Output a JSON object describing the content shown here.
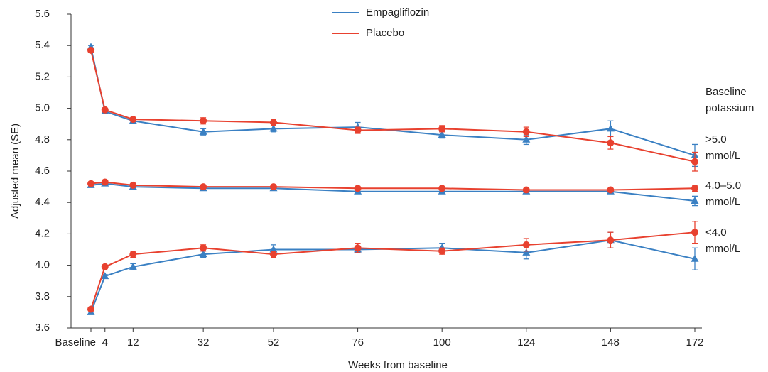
{
  "chart_data": {
    "type": "line",
    "x_label": "Weeks from baseline",
    "y_label": "Adjusted mean (SE)",
    "x": [
      0,
      4,
      12,
      32,
      52,
      76,
      100,
      124,
      148,
      172
    ],
    "xlim": [
      0,
      172
    ],
    "xticks": [
      {
        "value": 0,
        "label": "Baseline"
      },
      4,
      12,
      32,
      52,
      76,
      100,
      124,
      148,
      172
    ],
    "ylim": [
      3.6,
      5.6
    ],
    "yticks": [
      3.6,
      3.8,
      {
        "value": 4,
        "label": "4.0"
      },
      4.2,
      4.4,
      4.6,
      4.8,
      {
        "value": 5,
        "label": "5.0"
      },
      5.2,
      5.4,
      5.6
    ],
    "legend": "top",
    "group_title": [
      "Baseline",
      "potassium"
    ],
    "group_labels": [
      [
        ">5.0",
        "mmol/L"
      ],
      [
        "4.0–5.0",
        "mmol/L"
      ],
      [
        "<4.0",
        "mmol/L"
      ]
    ],
    "series": [
      {
        "name": "Empagliflozin",
        "color": "#3a80c3",
        "marker": "triangle",
        "groups": [
          {
            "values": [
              5.39,
              4.98,
              4.92,
              4.85,
              4.87,
              4.88,
              4.83,
              4.8,
              4.87,
              4.7
            ],
            "errors": [
              0.01,
              0.01,
              0.01,
              0.02,
              0.02,
              0.03,
              0.02,
              0.03,
              0.05,
              0.07
            ]
          },
          {
            "values": [
              4.51,
              4.52,
              4.5,
              4.49,
              4.49,
              4.47,
              4.47,
              4.47,
              4.47,
              4.41
            ],
            "errors": [
              0.01,
              0.01,
              0.01,
              0.01,
              0.01,
              0.01,
              0.01,
              0.01,
              0.01,
              0.03
            ]
          },
          {
            "values": [
              3.7,
              3.93,
              3.99,
              4.07,
              4.1,
              4.1,
              4.11,
              4.08,
              4.16,
              4.04
            ],
            "errors": [
              0.01,
              0.01,
              0.02,
              0.02,
              0.03,
              0.02,
              0.03,
              0.04,
              0.05,
              0.07
            ]
          }
        ]
      },
      {
        "name": "Placebo",
        "color": "#e8412f",
        "marker": "circle",
        "groups": [
          {
            "values": [
              5.37,
              4.99,
              4.93,
              4.92,
              4.91,
              4.86,
              4.87,
              4.85,
              4.78,
              4.66
            ],
            "errors": [
              0.01,
              0.01,
              0.01,
              0.02,
              0.02,
              0.02,
              0.02,
              0.03,
              0.04,
              0.06
            ]
          },
          {
            "values": [
              4.52,
              4.53,
              4.51,
              4.5,
              4.5,
              4.49,
              4.49,
              4.48,
              4.48,
              4.49
            ],
            "errors": [
              0.01,
              0.01,
              0.01,
              0.01,
              0.01,
              0.01,
              0.01,
              0.01,
              0.01,
              0.02
            ]
          },
          {
            "values": [
              3.72,
              3.99,
              4.07,
              4.11,
              4.07,
              4.11,
              4.09,
              4.13,
              4.16,
              4.21
            ],
            "errors": [
              0.01,
              0.01,
              0.02,
              0.02,
              0.02,
              0.03,
              0.02,
              0.04,
              0.05,
              0.07
            ]
          }
        ]
      }
    ]
  }
}
